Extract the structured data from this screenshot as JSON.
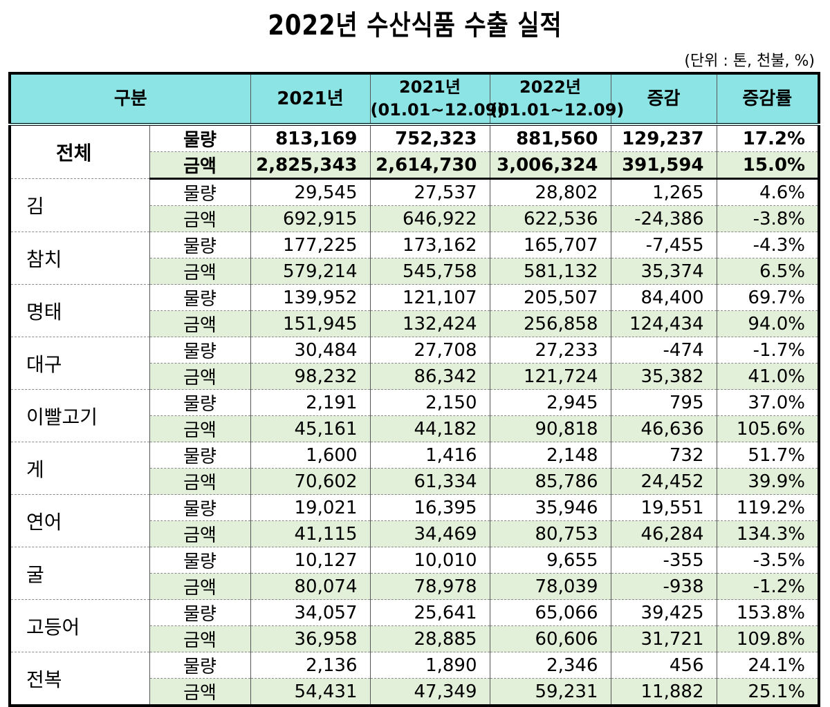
{
  "title": "2022년 수산식품 수출 실적",
  "unit_note": "(단위 : 톤, 천불, %)",
  "colors": {
    "header_bg": "#8de4e4",
    "amount_row_bg": "#e2f0d9",
    "border": "#000000"
  },
  "header": {
    "category": "구분",
    "col_2021": "2021년",
    "col_2021_period_year": "2021년",
    "col_2021_period_range": "(01.01~12.09)",
    "col_2022_period_year": "2022년",
    "col_2022_period_range": "(01.01~12.09)",
    "col_change": "증감",
    "col_change_rate": "증감률"
  },
  "metrics": {
    "volume": "물량",
    "amount": "금액"
  },
  "total": {
    "name": "전체",
    "volume": {
      "y2021": "813,169",
      "y2021_period": "752,323",
      "y2022_period": "881,560",
      "change": "129,237",
      "rate": "17.2%"
    },
    "amount": {
      "y2021": "2,825,343",
      "y2021_period": "2,614,730",
      "y2022_period": "3,006,324",
      "change": "391,594",
      "rate": "15.0%"
    }
  },
  "items": [
    {
      "name": "김",
      "volume": {
        "y2021": "29,545",
        "y2021_period": "27,537",
        "y2022_period": "28,802",
        "change": "1,265",
        "rate": "4.6%"
      },
      "amount": {
        "y2021": "692,915",
        "y2021_period": "646,922",
        "y2022_period": "622,536",
        "change": "-24,386",
        "rate": "-3.8%"
      }
    },
    {
      "name": "참치",
      "volume": {
        "y2021": "177,225",
        "y2021_period": "173,162",
        "y2022_period": "165,707",
        "change": "-7,455",
        "rate": "-4.3%"
      },
      "amount": {
        "y2021": "579,214",
        "y2021_period": "545,758",
        "y2022_period": "581,132",
        "change": "35,374",
        "rate": "6.5%"
      }
    },
    {
      "name": "명태",
      "volume": {
        "y2021": "139,952",
        "y2021_period": "121,107",
        "y2022_period": "205,507",
        "change": "84,400",
        "rate": "69.7%"
      },
      "amount": {
        "y2021": "151,945",
        "y2021_period": "132,424",
        "y2022_period": "256,858",
        "change": "124,434",
        "rate": "94.0%"
      }
    },
    {
      "name": "대구",
      "volume": {
        "y2021": "30,484",
        "y2021_period": "27,708",
        "y2022_period": "27,233",
        "change": "-474",
        "rate": "-1.7%"
      },
      "amount": {
        "y2021": "98,232",
        "y2021_period": "86,342",
        "y2022_period": "121,724",
        "change": "35,382",
        "rate": "41.0%"
      }
    },
    {
      "name": "이빨고기",
      "volume": {
        "y2021": "2,191",
        "y2021_period": "2,150",
        "y2022_period": "2,945",
        "change": "795",
        "rate": "37.0%"
      },
      "amount": {
        "y2021": "45,161",
        "y2021_period": "44,182",
        "y2022_period": "90,818",
        "change": "46,636",
        "rate": "105.6%"
      }
    },
    {
      "name": "게",
      "volume": {
        "y2021": "1,600",
        "y2021_period": "1,416",
        "y2022_period": "2,148",
        "change": "732",
        "rate": "51.7%"
      },
      "amount": {
        "y2021": "70,602",
        "y2021_period": "61,334",
        "y2022_period": "85,786",
        "change": "24,452",
        "rate": "39.9%"
      }
    },
    {
      "name": "연어",
      "volume": {
        "y2021": "19,021",
        "y2021_period": "16,395",
        "y2022_period": "35,946",
        "change": "19,551",
        "rate": "119.2%"
      },
      "amount": {
        "y2021": "41,115",
        "y2021_period": "34,469",
        "y2022_period": "80,753",
        "change": "46,284",
        "rate": "134.3%"
      }
    },
    {
      "name": "굴",
      "volume": {
        "y2021": "10,127",
        "y2021_period": "10,010",
        "y2022_period": "9,655",
        "change": "-355",
        "rate": "-3.5%"
      },
      "amount": {
        "y2021": "80,074",
        "y2021_period": "78,978",
        "y2022_period": "78,039",
        "change": "-938",
        "rate": "-1.2%"
      }
    },
    {
      "name": "고등어",
      "volume": {
        "y2021": "34,057",
        "y2021_period": "25,641",
        "y2022_period": "65,066",
        "change": "39,425",
        "rate": "153.8%"
      },
      "amount": {
        "y2021": "36,958",
        "y2021_period": "28,885",
        "y2022_period": "60,606",
        "change": "31,721",
        "rate": "109.8%"
      }
    },
    {
      "name": "전복",
      "volume": {
        "y2021": "2,136",
        "y2021_period": "1,890",
        "y2022_period": "2,346",
        "change": "456",
        "rate": "24.1%"
      },
      "amount": {
        "y2021": "54,431",
        "y2021_period": "47,349",
        "y2022_period": "59,231",
        "change": "11,882",
        "rate": "25.1%"
      }
    }
  ]
}
